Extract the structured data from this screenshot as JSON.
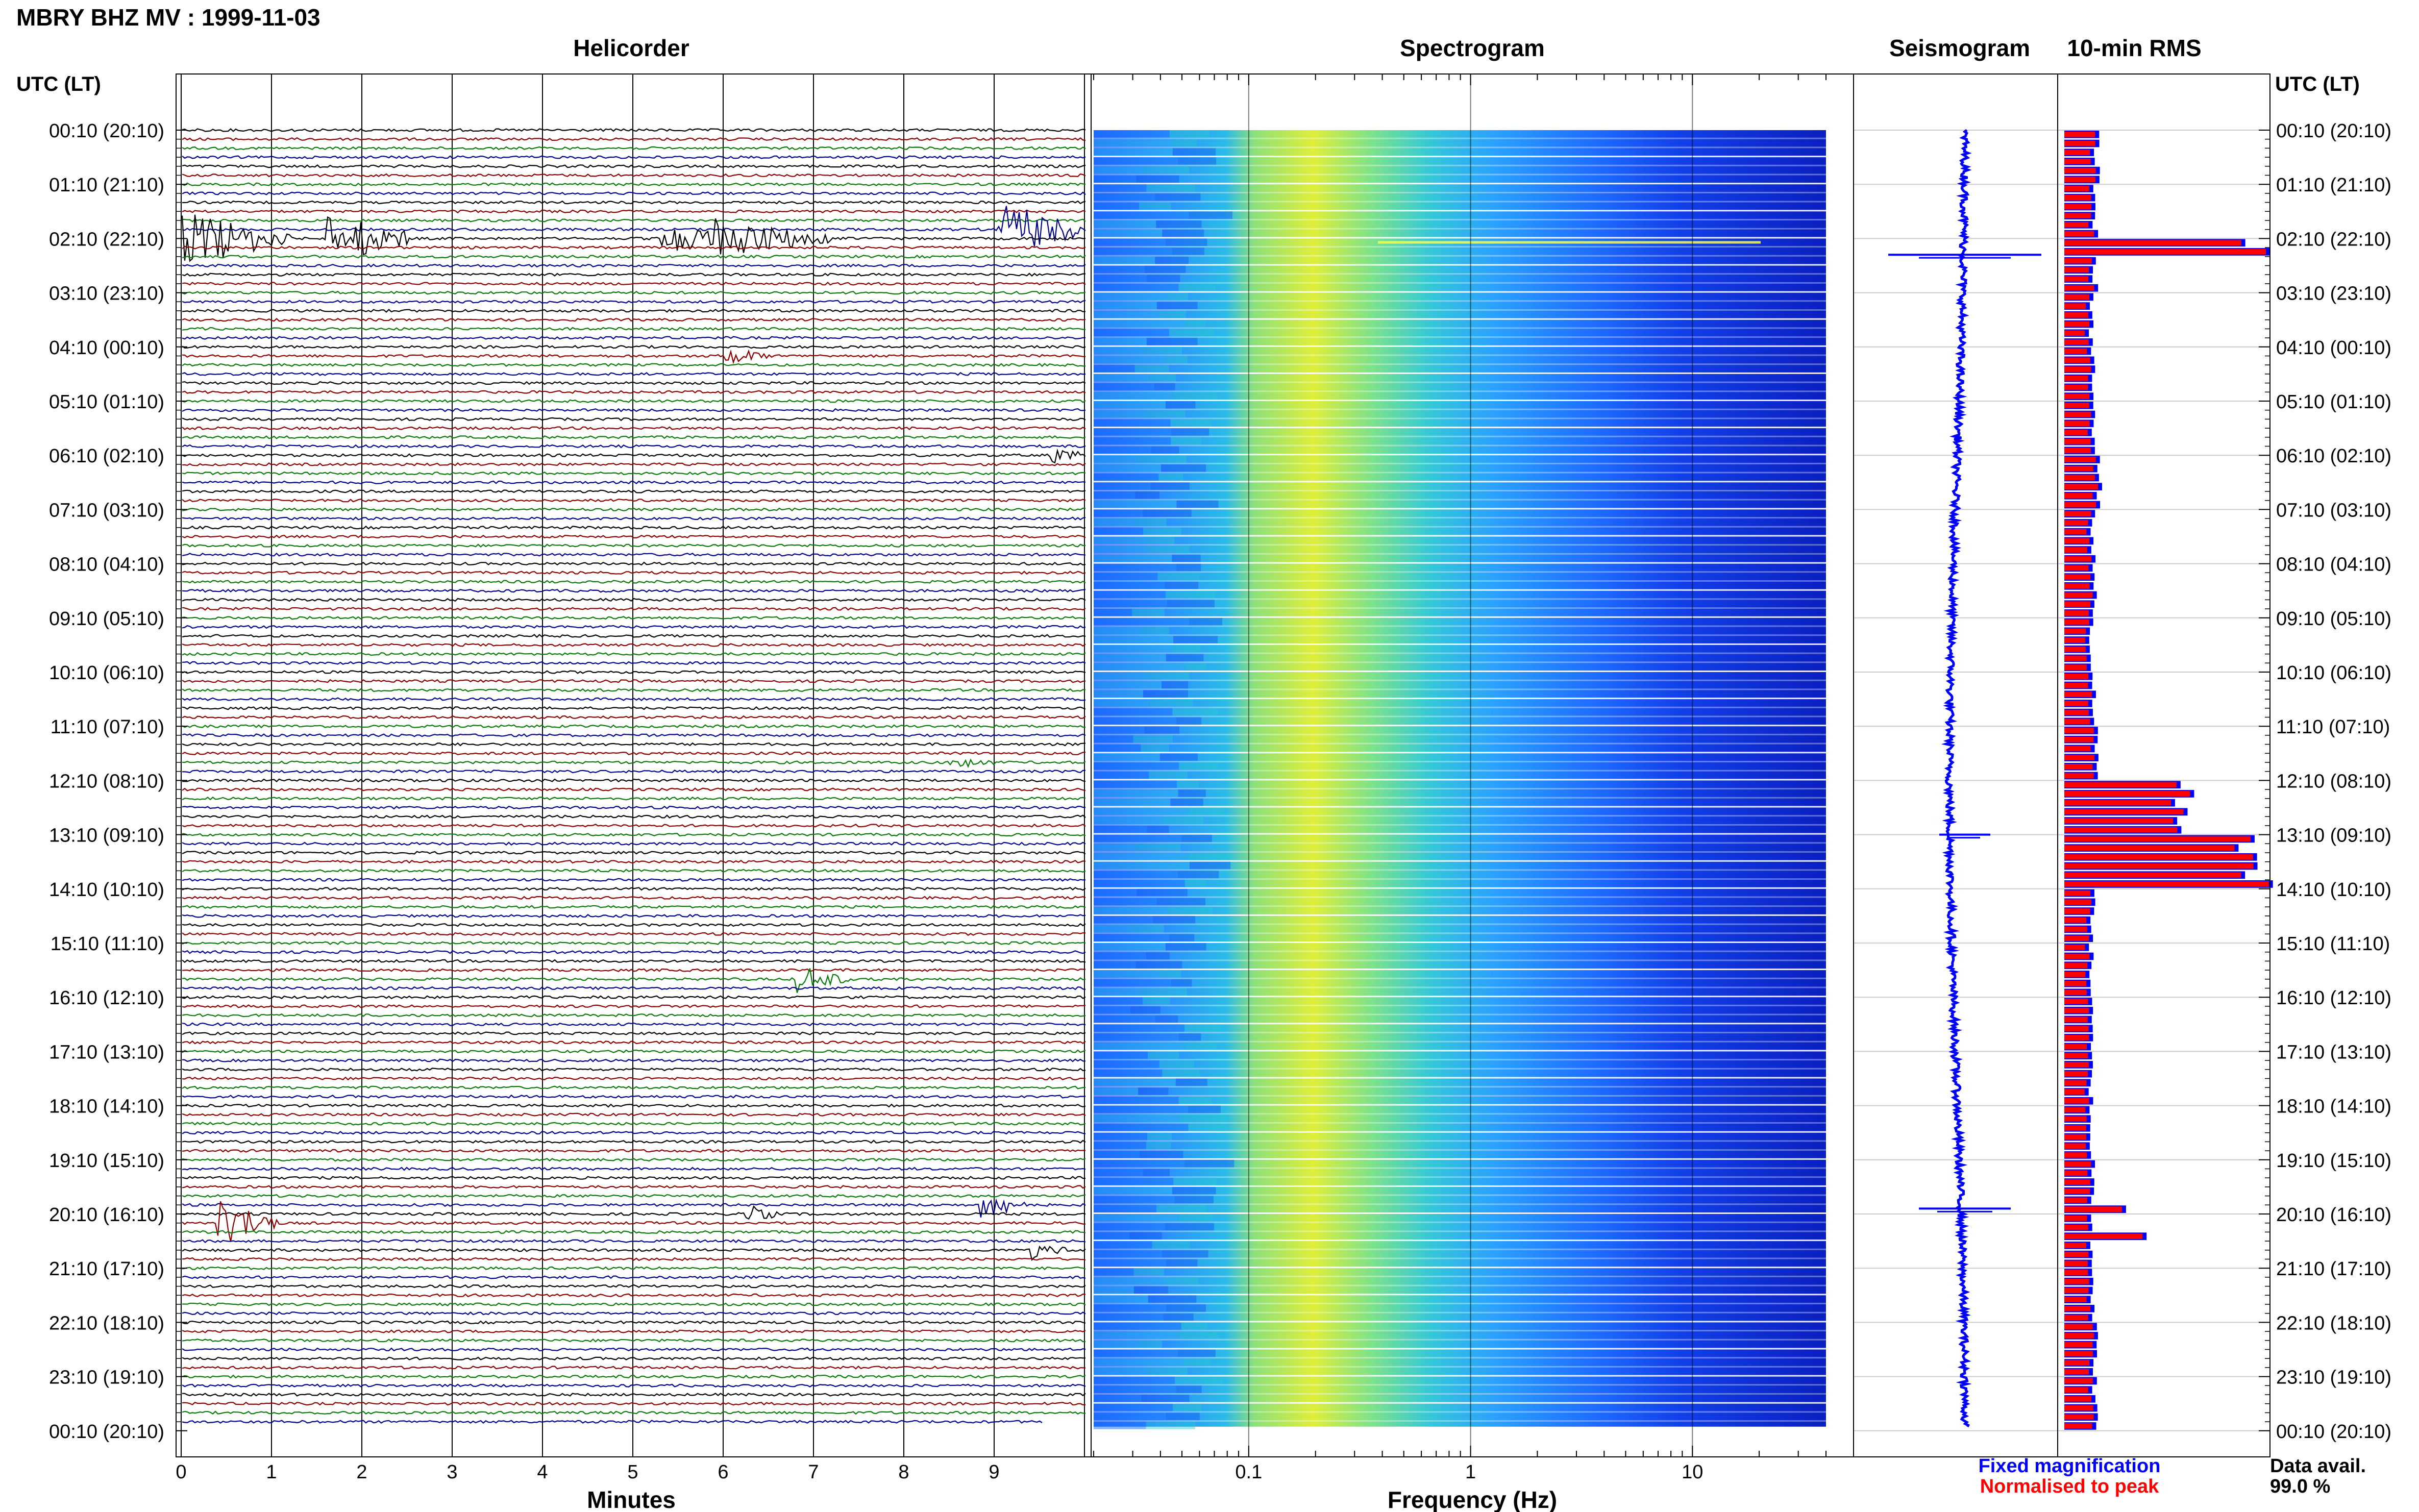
{
  "title": "MBRY BHZ MV : 1999-11-03",
  "time_axis_label": "UTC (LT)",
  "panels": {
    "helicorder": {
      "title": "Helicorder",
      "xlabel": "Minutes",
      "xticks": [
        "0",
        "1",
        "2",
        "3",
        "4",
        "5",
        "6",
        "7",
        "8",
        "9"
      ]
    },
    "spectrogram": {
      "title": "Spectrogram",
      "xlabel": "Frequency (Hz)",
      "xticks": [
        "0.1",
        "1",
        "10"
      ],
      "scale": "log"
    },
    "seismogram": {
      "title": "Seismogram"
    },
    "rms": {
      "title": "10-min RMS"
    }
  },
  "time_labels": [
    "00:10 (20:10)",
    "01:10 (21:10)",
    "02:10 (22:10)",
    "03:10 (23:10)",
    "04:10 (00:10)",
    "05:10 (01:10)",
    "06:10 (02:10)",
    "07:10 (03:10)",
    "08:10 (04:10)",
    "09:10 (05:10)",
    "10:10 (06:10)",
    "11:10 (07:10)",
    "12:10 (08:10)",
    "13:10 (09:10)",
    "14:10 (10:10)",
    "15:10 (11:10)",
    "16:10 (12:10)",
    "17:10 (13:10)",
    "18:10 (14:10)",
    "19:10 (15:10)",
    "20:10 (16:10)",
    "21:10 (17:10)",
    "22:10 (18:10)",
    "23:10 (19:10)",
    "00:10 (20:10)"
  ],
  "legend": {
    "fixed": "Fixed magnification",
    "normalised": "Normalised to peak",
    "fixed_color": "#0000ff",
    "normalised_color": "#ff0000"
  },
  "data_avail": {
    "label": "Data avail.",
    "value": "99.0 %"
  },
  "colors": {
    "trace_cycle": [
      "#000000",
      "#8b0000",
      "#0a7a0a",
      "#00008b"
    ],
    "seismogram": "#0000ff",
    "rms_fill": "#ff0000",
    "rms_edge": "#0000ff"
  },
  "chart_data": {
    "type": "line",
    "helicorder": {
      "rows_per_hour": 6,
      "row_minutes": 10,
      "events": [
        {
          "row": 12,
          "minute": 0.0,
          "amp": 6,
          "dur": 1.2
        },
        {
          "row": 12,
          "minute": 1.6,
          "amp": 6,
          "dur": 0.9
        },
        {
          "row": 12,
          "minute": 5.3,
          "amp": 3,
          "dur": 1.0
        },
        {
          "row": 12,
          "minute": 5.9,
          "amp": 4,
          "dur": 1.3
        },
        {
          "row": 11,
          "minute": 9.0,
          "amp": 6,
          "dur": 1.0
        },
        {
          "row": 25,
          "minute": 6.0,
          "amp": 2,
          "dur": 0.5
        },
        {
          "row": 36,
          "minute": 9.6,
          "amp": 2,
          "dur": 0.4
        },
        {
          "row": 70,
          "minute": 8.5,
          "amp": 2,
          "dur": 0.5
        },
        {
          "row": 94,
          "minute": 6.8,
          "amp": 3,
          "dur": 0.6
        },
        {
          "row": 121,
          "minute": 0.4,
          "amp": 5,
          "dur": 0.7
        },
        {
          "row": 120,
          "minute": 6.2,
          "amp": 2,
          "dur": 0.4
        },
        {
          "row": 119,
          "minute": 8.8,
          "amp": 3,
          "dur": 0.6
        },
        {
          "row": 124,
          "minute": 9.4,
          "amp": 2,
          "dur": 0.4
        }
      ]
    },
    "spectrogram": {
      "frequency_range_hz": [
        0.02,
        40
      ],
      "peak_band_hz": [
        0.2,
        0.4
      ],
      "rows": 144
    },
    "seismogram": {
      "events_hour": [
        2.3,
        19.9,
        13.0
      ]
    },
    "rms": {
      "hours": [
        0,
        1,
        2,
        3,
        4,
        5,
        6,
        7,
        8,
        9,
        10,
        11,
        12,
        13,
        14,
        15,
        16,
        17,
        18,
        19,
        20,
        21,
        22,
        23
      ],
      "values_normalised": [
        0.16,
        0.15,
        0.15,
        0.13,
        0.14,
        0.14,
        0.17,
        0.14,
        0.15,
        0.13,
        0.14,
        0.16,
        0.58,
        0.93,
        0.14,
        0.13,
        0.13,
        0.13,
        0.13,
        0.14,
        0.14,
        0.14,
        0.15,
        0.15
      ]
    }
  }
}
